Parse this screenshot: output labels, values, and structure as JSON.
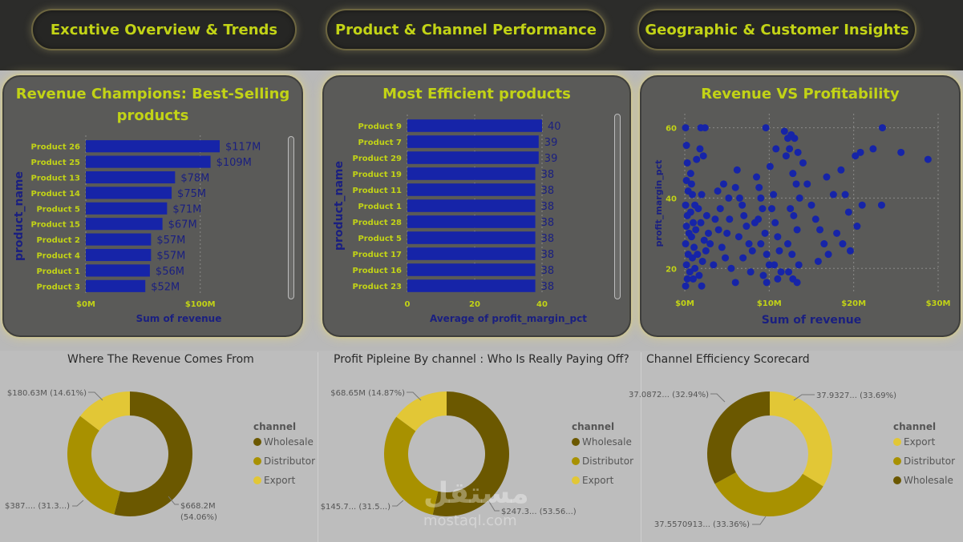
{
  "nav": {
    "tabs": [
      {
        "label": "Excutive Overview & Trends"
      },
      {
        "label": "Product & Channel Performance"
      },
      {
        "label": "Geographic & Customer Insights"
      }
    ]
  },
  "colors": {
    "bar": "#1624a8",
    "accent": "#c2d316",
    "wholesale": "#6b5800",
    "distributor": "#a89100",
    "export": "#e2c736"
  },
  "watermark": {
    "arabic": "مستقل",
    "latin": "mostaql.com"
  },
  "chart_data": [
    {
      "id": "revenue-champions",
      "type": "bar",
      "orientation": "horizontal",
      "title": "Revenue Champions: Best-Selling products",
      "xlabel": "Sum of revenue",
      "ylabel": "product_name",
      "xlim": [
        0,
        117
      ],
      "xticks": [
        {
          "value": 0,
          "label": "$0M"
        },
        {
          "value": 100,
          "label": "$100M"
        }
      ],
      "categories": [
        "Product 26",
        "Product 25",
        "Product 13",
        "Product 14",
        "Product 5",
        "Product 15",
        "Product 2",
        "Product 4",
        "Product 1",
        "Product 3"
      ],
      "values": [
        117,
        109,
        78,
        75,
        71,
        67,
        57,
        57,
        56,
        52
      ],
      "labels": [
        "$117M",
        "$109M",
        "$78M",
        "$75M",
        "$71M",
        "$67M",
        "$57M",
        "$57M",
        "$56M",
        "$52M"
      ],
      "grid": true
    },
    {
      "id": "efficient-products",
      "type": "bar",
      "orientation": "horizontal",
      "title": "Most Efficient products",
      "xlabel": "Average of profit_margin_pct",
      "ylabel": "product_name",
      "xlim": [
        0,
        40
      ],
      "xticks": [
        {
          "value": 0,
          "label": "0"
        },
        {
          "value": 20,
          "label": "20"
        },
        {
          "value": 40,
          "label": "40"
        }
      ],
      "categories": [
        "Product 9",
        "Product 7",
        "Product 29",
        "Product 19",
        "Product 11",
        "Product 1",
        "Product 28",
        "Product 5",
        "Product 17",
        "Product 16",
        "Product 23"
      ],
      "values": [
        40,
        39,
        39,
        38,
        38,
        38,
        38,
        38,
        38,
        38,
        38
      ],
      "labels": [
        "40",
        "39",
        "39",
        "38",
        "38",
        "38",
        "38",
        "38",
        "38",
        "38",
        "38"
      ],
      "grid": true
    },
    {
      "id": "revenue-vs-profitability",
      "type": "scatter",
      "title": "Revenue VS Profitability",
      "xlabel": "Sum of revenue",
      "ylabel": "profit_margin_pct",
      "xlim": [
        0,
        30
      ],
      "ylim": [
        13,
        64
      ],
      "xticks": [
        {
          "value": 0,
          "label": "$0M"
        },
        {
          "value": 10,
          "label": "$10M"
        },
        {
          "value": 20,
          "label": "$20M"
        },
        {
          "value": 30,
          "label": "$30M"
        }
      ],
      "yticks": [
        {
          "value": 20,
          "label": "20"
        },
        {
          "value": 40,
          "label": "40"
        },
        {
          "value": 60,
          "label": "60"
        }
      ],
      "grid": true,
      "points": [
        [
          0.1,
          60
        ],
        [
          0.2,
          55
        ],
        [
          0.3,
          50
        ],
        [
          0.2,
          45
        ],
        [
          0.4,
          42
        ],
        [
          0.1,
          38
        ],
        [
          0.3,
          35
        ],
        [
          0.2,
          32
        ],
        [
          0.5,
          30
        ],
        [
          0.1,
          27
        ],
        [
          0.4,
          24
        ],
        [
          0.2,
          21
        ],
        [
          0.6,
          19
        ],
        [
          0.3,
          17
        ],
        [
          0.1,
          15
        ],
        [
          0.8,
          44
        ],
        [
          0.9,
          41
        ],
        [
          0.7,
          36
        ],
        [
          1.0,
          33
        ],
        [
          0.8,
          29
        ],
        [
          1.1,
          26
        ],
        [
          0.9,
          23
        ],
        [
          1.2,
          20
        ],
        [
          1.0,
          17
        ],
        [
          0.7,
          47
        ],
        [
          1.3,
          31
        ],
        [
          1.2,
          38
        ],
        [
          1.9,
          60
        ],
        [
          2.4,
          60
        ],
        [
          1.4,
          51
        ],
        [
          1.8,
          54
        ],
        [
          2.2,
          52
        ],
        [
          2.0,
          41
        ],
        [
          1.6,
          37
        ],
        [
          1.9,
          33
        ],
        [
          2.3,
          28
        ],
        [
          2.5,
          25
        ],
        [
          2.1,
          22
        ],
        [
          1.7,
          18
        ],
        [
          2.6,
          35
        ],
        [
          2.8,
          30
        ],
        [
          1.5,
          24
        ],
        [
          2.0,
          15
        ],
        [
          3.0,
          27
        ],
        [
          3.4,
          21
        ],
        [
          3.6,
          34
        ],
        [
          3.9,
          42
        ],
        [
          4.2,
          37
        ],
        [
          4.0,
          31
        ],
        [
          4.4,
          26
        ],
        [
          4.8,
          23
        ],
        [
          5.0,
          30
        ],
        [
          5.2,
          40
        ],
        [
          4.6,
          44
        ],
        [
          5.5,
          20
        ],
        [
          5.3,
          34
        ],
        [
          6.2,
          48
        ],
        [
          6.0,
          43
        ],
        [
          6.5,
          40
        ],
        [
          6.8,
          38
        ],
        [
          7.0,
          35
        ],
        [
          7.3,
          32
        ],
        [
          6.4,
          29
        ],
        [
          7.6,
          27
        ],
        [
          8.0,
          25
        ],
        [
          6.9,
          23
        ],
        [
          7.8,
          19
        ],
        [
          8.3,
          33
        ],
        [
          6.0,
          16
        ],
        [
          8.5,
          46
        ],
        [
          8.8,
          43
        ],
        [
          9.0,
          40
        ],
        [
          9.2,
          37
        ],
        [
          8.7,
          34
        ],
        [
          9.5,
          30
        ],
        [
          9.0,
          27
        ],
        [
          9.7,
          24
        ],
        [
          10.0,
          21
        ],
        [
          9.3,
          18
        ],
        [
          9.7,
          16
        ],
        [
          9.6,
          60
        ],
        [
          10.8,
          54
        ],
        [
          10.1,
          49
        ],
        [
          10.5,
          41
        ],
        [
          10.3,
          37
        ],
        [
          10.7,
          33
        ],
        [
          11.0,
          29
        ],
        [
          11.2,
          25
        ],
        [
          10.6,
          21
        ],
        [
          11.4,
          19
        ],
        [
          11.0,
          17
        ],
        [
          11.8,
          59
        ],
        [
          12.2,
          57
        ],
        [
          12.6,
          58
        ],
        [
          13.0,
          57
        ],
        [
          12.4,
          54
        ],
        [
          12.0,
          52
        ],
        [
          13.4,
          53
        ],
        [
          12.8,
          47
        ],
        [
          13.2,
          44
        ],
        [
          13.6,
          40
        ],
        [
          12.5,
          37
        ],
        [
          12.9,
          35
        ],
        [
          13.3,
          31
        ],
        [
          12.2,
          27
        ],
        [
          12.7,
          24
        ],
        [
          13.5,
          21
        ],
        [
          12.3,
          19
        ],
        [
          12.8,
          17
        ],
        [
          13.3,
          16
        ],
        [
          14.0,
          50
        ],
        [
          14.5,
          44
        ],
        [
          15.0,
          38
        ],
        [
          15.5,
          34
        ],
        [
          16.0,
          31
        ],
        [
          16.5,
          27
        ],
        [
          17.0,
          24
        ],
        [
          15.8,
          22
        ],
        [
          16.8,
          46
        ],
        [
          17.6,
          41
        ],
        [
          18.5,
          48
        ],
        [
          19.0,
          41
        ],
        [
          19.4,
          36
        ],
        [
          18.0,
          30
        ],
        [
          18.7,
          27
        ],
        [
          19.6,
          25
        ],
        [
          20.2,
          52
        ],
        [
          20.8,
          53
        ],
        [
          21.0,
          38
        ],
        [
          20.4,
          32
        ],
        [
          23.3,
          38
        ],
        [
          22.3,
          54
        ],
        [
          23.4,
          60
        ],
        [
          25.6,
          53
        ],
        [
          28.8,
          51
        ]
      ]
    },
    {
      "id": "where-revenue",
      "type": "pie",
      "variant": "donut",
      "title": "Where The Revenue Comes From",
      "legend_title": "channel",
      "legend_position": "right",
      "slices": [
        {
          "name": "Wholesale",
          "value": 54.06,
          "label": "$668.2M\n(54.06%)",
          "color": "#6b5800"
        },
        {
          "name": "Distributor",
          "value": 31.33,
          "label": "$387.... (31.3...)",
          "color": "#a89100"
        },
        {
          "name": "Export",
          "value": 14.61,
          "label": "$180.63M (14.61%)",
          "color": "#e2c736"
        }
      ]
    },
    {
      "id": "profit-pipeline",
      "type": "pie",
      "variant": "donut",
      "title": "Profit Pipleine By channel : Who Is Really Paying Off?",
      "legend_title": "channel",
      "legend_position": "right",
      "slices": [
        {
          "name": "Wholesale",
          "value": 53.56,
          "label": "$247.3... (53.56...)",
          "color": "#6b5800"
        },
        {
          "name": "Distributor",
          "value": 31.57,
          "label": "$145.7... (31.5...)",
          "color": "#a89100"
        },
        {
          "name": "Export",
          "value": 14.87,
          "label": "$68.65M (14.87%)",
          "color": "#e2c736"
        }
      ]
    },
    {
      "id": "efficiency-scorecard",
      "type": "pie",
      "variant": "donut",
      "title": "Channel Efficiency Scorecard",
      "legend_title": "channel",
      "legend_position": "right",
      "slices": [
        {
          "name": "Export",
          "value": 33.69,
          "label": "37.9327... (33.69%)",
          "color": "#e2c736"
        },
        {
          "name": "Distributor",
          "value": 33.36,
          "label": "37.5570913... (33.36%)",
          "color": "#a89100"
        },
        {
          "name": "Wholesale",
          "value": 32.94,
          "label": "37.0872... (32.94%)",
          "color": "#6b5800"
        }
      ]
    }
  ]
}
